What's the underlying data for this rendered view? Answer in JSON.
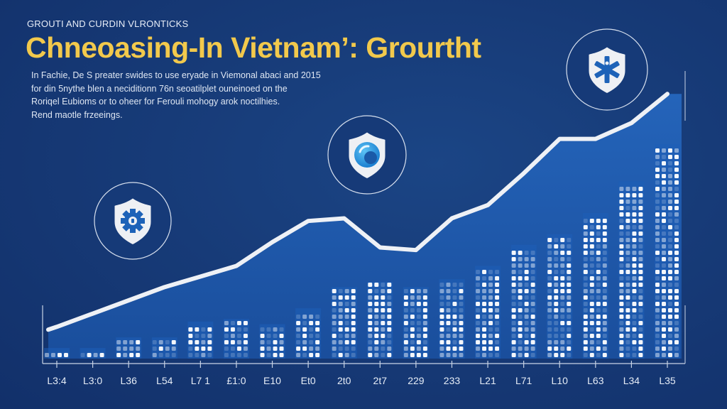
{
  "header": {
    "kicker": "GROUTI AND CURDIN VLRONTICKS",
    "title": "Chneoasing-In Vietnam’: Grourtht",
    "description": [
      "In Fachie, De S preater swides to use eryade in Viemonal abaci and 2015",
      "for din 5nythe blen a neciditionn 76n seoatilplet ouneinoed on the",
      "Roriqel Eubioms or to oheer for Ferouli mohogy arok noctilhies.",
      "Rend maotle frzeeings."
    ]
  },
  "colors": {
    "background": "#173b78",
    "title": "#f2c94c",
    "line": "#eef1f6",
    "area": "#1f5cb0",
    "bar_dot": "#ffffff",
    "icon_blue": "#1d62b8",
    "icon_cyan": "#2a9be0"
  },
  "icons": [
    {
      "name": "shield-gear-icon",
      "x_index": 2
    },
    {
      "name": "shield-camera-icon",
      "x_index": 8
    },
    {
      "name": "shield-asterisk-icon",
      "x_index": 15
    }
  ],
  "chart_data": {
    "type": "line",
    "title": "Chneoasing-In Vietnam’: Grourtht",
    "xlabel": "",
    "ylabel": "",
    "categories": [
      "L3:4",
      "L3:0",
      "L36",
      "L54",
      "L7 1",
      "£1:0",
      "E10",
      "Et0",
      "2t0",
      "2t7",
      "229",
      "233",
      "L21",
      "L71",
      "L10",
      "L63",
      "L34",
      "L35"
    ],
    "series": [
      {
        "name": "growth-line",
        "values": [
          12,
          17,
          22,
          27,
          31,
          35,
          44,
          52,
          53,
          42,
          41,
          53,
          58,
          70,
          83,
          83,
          89,
          100
        ]
      },
      {
        "name": "bars",
        "values": [
          4,
          4,
          8,
          8,
          14,
          15,
          13,
          19,
          27,
          29,
          27,
          30,
          35,
          43,
          47,
          55,
          67,
          81
        ]
      }
    ],
    "ylim": [
      0,
      110
    ],
    "grid": false,
    "legend": "none"
  }
}
